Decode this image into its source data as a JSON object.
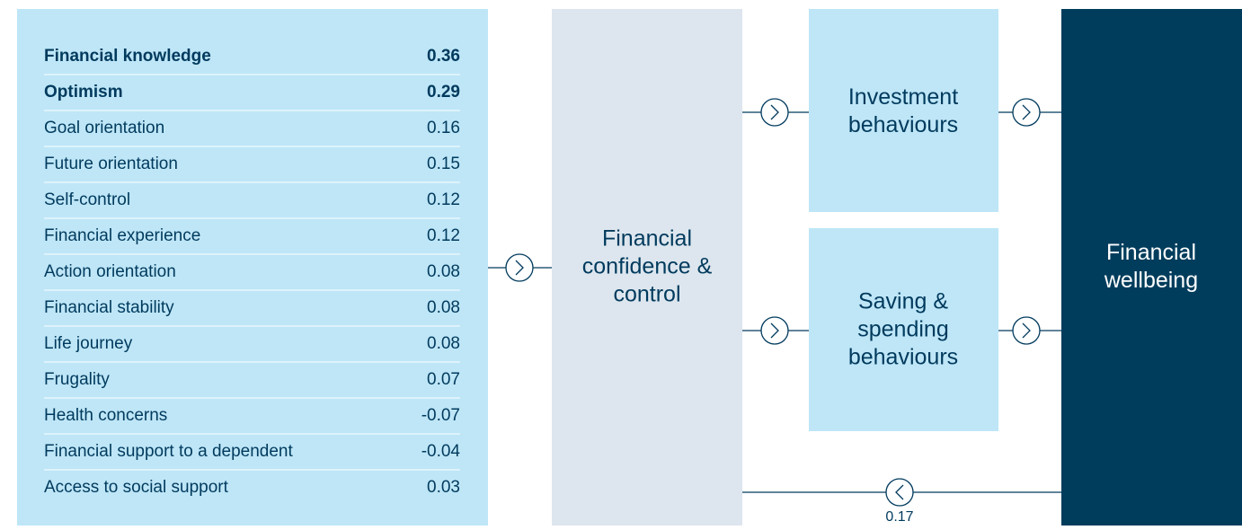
{
  "table": {
    "rows": [
      [
        "Financial knowledge",
        "0.36"
      ],
      [
        "Optimism",
        "0.29"
      ],
      [
        "Goal orientation",
        "0.16"
      ],
      [
        "Future orientation",
        "0.15"
      ],
      [
        "Self-control",
        "0.12"
      ],
      [
        "Financial experience",
        "0.12"
      ],
      [
        "Action orientation",
        "0.08"
      ],
      [
        "Financial stability",
        "0.08"
      ],
      [
        "Life journey",
        "0.08"
      ],
      [
        "Frugality",
        "0.07"
      ],
      [
        "Health concerns",
        "-0.07"
      ],
      [
        "Financial support to a dependent",
        "-0.04"
      ],
      [
        "Access to social support",
        "0.03"
      ]
    ]
  },
  "nodes": [
    {
      "lines": [
        "Financial",
        "confidence &",
        "control"
      ]
    },
    {
      "lines": [
        "Investment",
        "behaviours"
      ]
    },
    {
      "lines": [
        "Saving &",
        "spending",
        "behaviours"
      ]
    },
    {
      "lines": [
        "Financial",
        "wellbeing"
      ]
    }
  ],
  "feedback": {
    "label": "0.17"
  }
}
